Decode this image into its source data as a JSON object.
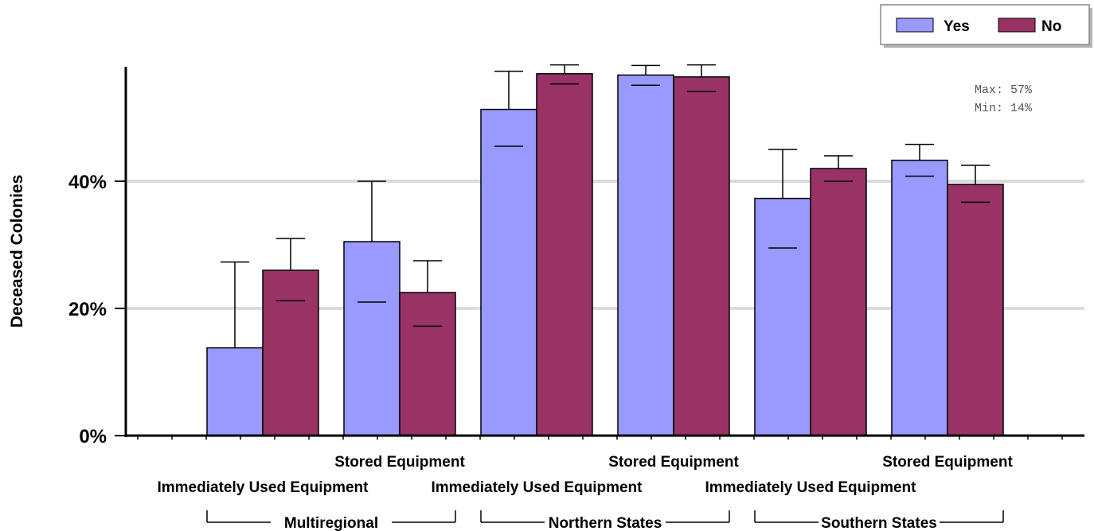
{
  "chart_data": {
    "type": "bar",
    "ylabel": "Deceased Colonies",
    "yticks": [
      "0%",
      "20%",
      "40%"
    ],
    "ylim": [
      0,
      58
    ],
    "grid": true,
    "legend_placement": "top-right",
    "annotation": {
      "max_text": "Max: 57%",
      "min_text": "Min: 14%"
    },
    "colors": {
      "Yes": "#9999ff",
      "No": "#993366"
    },
    "groups": [
      {
        "name": "Multiregional",
        "categories": [
          "Immediately Used Equipment",
          "Stored Equipment"
        ]
      },
      {
        "name": "Northern States",
        "categories": [
          "Immediately Used Equipment",
          "Stored Equipment"
        ]
      },
      {
        "name": "Southern States",
        "categories": [
          "Immediately Used Equipment",
          "Stored Equipment"
        ]
      }
    ],
    "series": [
      {
        "name": "Yes",
        "values": [
          13.8,
          30.5,
          51.3,
          56.7,
          37.3,
          43.3
        ],
        "upper": [
          27.3,
          40.0,
          57.3,
          58.2,
          45.0,
          45.8
        ],
        "lower": [
          null,
          21.0,
          45.5,
          55.1,
          29.5,
          40.8
        ]
      },
      {
        "name": "No",
        "values": [
          26.0,
          22.5,
          56.9,
          56.4,
          42.0,
          39.5
        ],
        "upper": [
          31.0,
          27.5,
          58.3,
          58.3,
          44.0,
          42.5
        ],
        "lower": [
          21.2,
          17.2,
          55.3,
          54.1,
          40.0,
          36.7
        ]
      }
    ]
  }
}
